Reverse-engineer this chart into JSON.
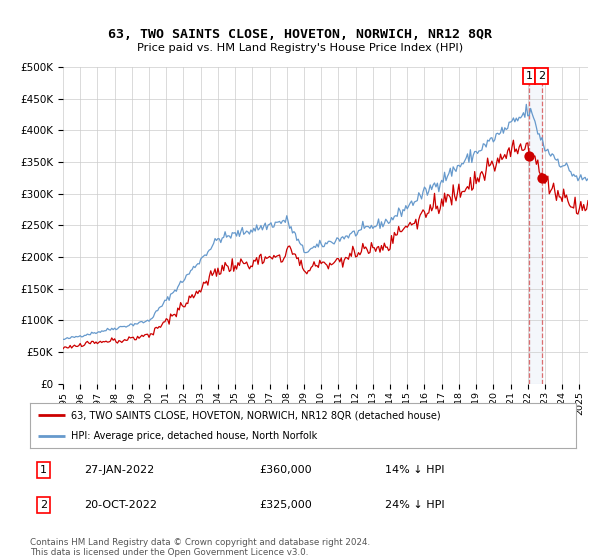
{
  "title": "63, TWO SAINTS CLOSE, HOVETON, NORWICH, NR12 8QR",
  "subtitle": "Price paid vs. HM Land Registry's House Price Index (HPI)",
  "legend_line1": "63, TWO SAINTS CLOSE, HOVETON, NORWICH, NR12 8QR (detached house)",
  "legend_line2": "HPI: Average price, detached house, North Norfolk",
  "annotation1_date": "27-JAN-2022",
  "annotation1_price": "£360,000",
  "annotation1_hpi": "14% ↓ HPI",
  "annotation2_date": "20-OCT-2022",
  "annotation2_price": "£325,000",
  "annotation2_hpi": "24% ↓ HPI",
  "footer": "Contains HM Land Registry data © Crown copyright and database right 2024.\nThis data is licensed under the Open Government Licence v3.0.",
  "hpi_color": "#6699cc",
  "price_color": "#cc0000",
  "background_color": "#ffffff",
  "grid_color": "#cccccc",
  "ylim": [
    0,
    500000
  ],
  "yticks": [
    0,
    50000,
    100000,
    150000,
    200000,
    250000,
    300000,
    350000,
    400000,
    450000,
    500000
  ],
  "sale1_price": 360000,
  "sale2_price": 325000
}
